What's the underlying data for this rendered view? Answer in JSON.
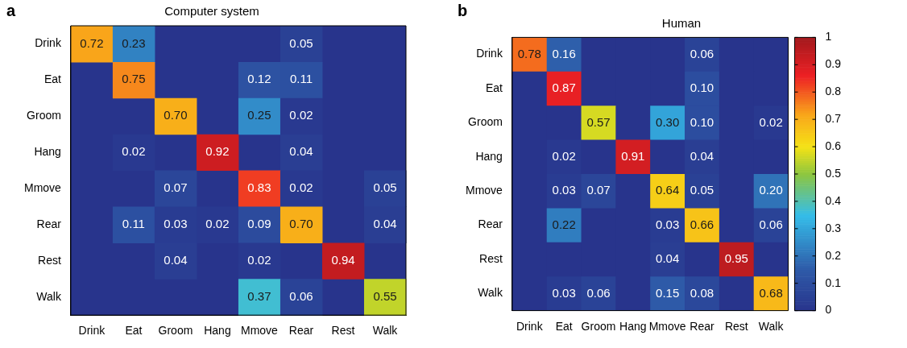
{
  "chart_data": [
    {
      "type": "heatmap",
      "title": "Computer system",
      "annotations": [
        "a"
      ],
      "categories": [
        "Drink",
        "Eat",
        "Groom",
        "Hang",
        "Mmove",
        "Rear",
        "Rest",
        "Walk"
      ],
      "y_categories": [
        "Drink",
        "Eat",
        "Groom",
        "Hang",
        "Mmove",
        "Rear",
        "Rest",
        "Walk"
      ],
      "cells": [
        [
          0.72,
          0.23,
          null,
          null,
          null,
          0.05,
          null,
          null
        ],
        [
          null,
          0.75,
          null,
          null,
          0.12,
          0.11,
          null,
          null
        ],
        [
          null,
          null,
          0.7,
          null,
          0.25,
          0.02,
          null,
          null
        ],
        [
          null,
          0.02,
          null,
          0.92,
          null,
          0.04,
          null,
          null
        ],
        [
          null,
          null,
          0.07,
          null,
          0.83,
          0.02,
          null,
          0.05
        ],
        [
          null,
          0.11,
          0.03,
          0.02,
          0.09,
          0.7,
          null,
          0.04
        ],
        [
          null,
          null,
          0.04,
          null,
          0.02,
          null,
          0.94,
          null
        ],
        [
          null,
          null,
          null,
          null,
          0.37,
          0.06,
          null,
          0.55
        ]
      ],
      "cell_labels": [
        [
          "0.72",
          "0.23",
          null,
          null,
          null,
          "0.05",
          null,
          null
        ],
        [
          null,
          "0.75",
          null,
          null,
          "0.12",
          "0.11",
          null,
          null
        ],
        [
          null,
          null,
          "0.70",
          null,
          "0.25",
          "0.02",
          null,
          null
        ],
        [
          null,
          "0.02",
          null,
          "0.92",
          null,
          "0.04",
          null,
          null
        ],
        [
          null,
          null,
          "0.07",
          null,
          "0.83",
          "0.02",
          null,
          "0.05"
        ],
        [
          null,
          "0.11",
          "0.03",
          "0.02",
          "0.09",
          "0.70",
          null,
          "0.04"
        ],
        [
          null,
          null,
          "0.04",
          null,
          "0.02",
          null,
          "0.94",
          null
        ],
        [
          null,
          null,
          null,
          null,
          "0.37",
          "0.06",
          null,
          "0.55"
        ]
      ]
    },
    {
      "type": "heatmap",
      "title": "Human",
      "annotations": [
        "b"
      ],
      "categories": [
        "Drink",
        "Eat",
        "Groom",
        "Hang",
        "Mmove",
        "Rear",
        "Rest",
        "Walk"
      ],
      "y_categories": [
        "Drink",
        "Eat",
        "Groom",
        "Hang",
        "Mmove",
        "Rear",
        "Rest",
        "Walk"
      ],
      "clim": [
        0,
        1
      ],
      "cticks": [
        0,
        0.1,
        0.2,
        0.3,
        0.4,
        0.5,
        0.6,
        0.7,
        0.8,
        0.9,
        1
      ],
      "cells": [
        [
          0.78,
          0.16,
          0,
          0,
          0,
          0.06,
          0,
          0
        ],
        [
          0,
          0.87,
          0,
          0,
          0,
          0.1,
          0,
          0
        ],
        [
          0,
          0,
          0.57,
          0,
          0.3,
          0.1,
          0,
          0.02
        ],
        [
          0,
          0.02,
          0,
          0.91,
          0,
          0.04,
          0,
          0
        ],
        [
          0,
          0.03,
          0.07,
          0,
          0.64,
          0.05,
          0,
          0.2
        ],
        [
          0,
          0.22,
          0,
          0,
          0.03,
          0.66,
          0,
          0.06
        ],
        [
          0,
          0,
          0,
          0,
          0.04,
          0,
          0.95,
          0
        ],
        [
          0,
          0.03,
          0.06,
          0,
          0.15,
          0.08,
          0,
          0.68
        ]
      ],
      "cell_labels": [
        [
          "0.78",
          "0.16",
          null,
          null,
          null,
          "0.06",
          null,
          null
        ],
        [
          null,
          "0.87",
          null,
          null,
          null,
          "0.10",
          null,
          null
        ],
        [
          null,
          null,
          "0.57",
          null,
          "0.30",
          "0.10",
          null,
          "0.02"
        ],
        [
          null,
          "0.02",
          null,
          "0.91",
          null,
          "0.04",
          null,
          null
        ],
        [
          null,
          "0.03",
          "0.07",
          null,
          "0.64",
          "0.05",
          null,
          "0.20"
        ],
        [
          null,
          "0.22",
          null,
          null,
          "0.03",
          "0.66",
          null,
          "0.06"
        ],
        [
          null,
          null,
          null,
          null,
          "0.04",
          null,
          "0.95",
          null
        ],
        [
          null,
          "0.03",
          "0.06",
          null,
          "0.15",
          "0.08",
          null,
          "0.68"
        ]
      ]
    }
  ]
}
